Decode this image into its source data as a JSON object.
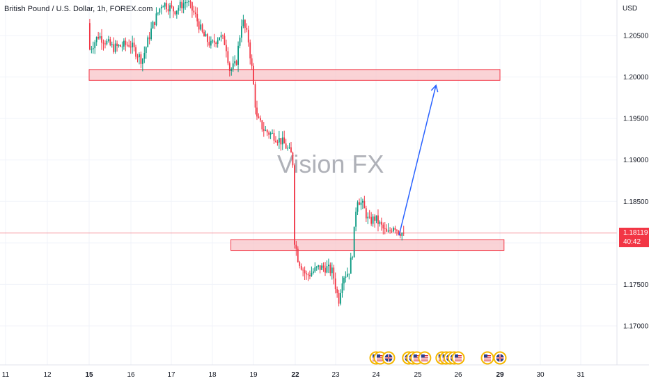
{
  "header": {
    "title": "British Pound / U.S. Dollar, 1h, FOREX.com",
    "currency": "USD"
  },
  "price_tag": {
    "price": "1.18119",
    "countdown": "40:42"
  },
  "watermark": "Vision FX",
  "colors": {
    "up": "#089981",
    "down": "#f23645",
    "zone_fill": "#f8c4c8",
    "zone_border": "#f23645",
    "arrow": "#2962ff",
    "grid": "#f0f3fa",
    "price_line": "#f23645"
  },
  "chart_data": {
    "type": "candlestick",
    "symbol": "British Pound / U.S. Dollar",
    "interval": "1h",
    "source": "FOREX.com",
    "y_ticks": [
      1.205,
      1.2,
      1.195,
      1.19,
      1.185,
      1.18,
      1.175,
      1.17
    ],
    "y_tick_labels": [
      "1.20500",
      "1.20000",
      "1.19500",
      "1.19000",
      "1.18500",
      "1.18000",
      "1.17500",
      "1.17000"
    ],
    "ylim": [
      1.167,
      1.2095
    ],
    "x_ticks": [
      {
        "label": "11",
        "day": 11,
        "bold": false
      },
      {
        "label": "12",
        "day": 12,
        "bold": false
      },
      {
        "label": "15",
        "day": 15,
        "bold": true
      },
      {
        "label": "16",
        "day": 16,
        "bold": false
      },
      {
        "label": "17",
        "day": 17,
        "bold": false
      },
      {
        "label": "18",
        "day": 18,
        "bold": false
      },
      {
        "label": "19",
        "day": 19,
        "bold": false
      },
      {
        "label": "22",
        "day": 22,
        "bold": true
      },
      {
        "label": "23",
        "day": 23,
        "bold": false
      },
      {
        "label": "24",
        "day": 24,
        "bold": false
      },
      {
        "label": "25",
        "day": 25,
        "bold": false
      },
      {
        "label": "26",
        "day": 26,
        "bold": false
      },
      {
        "label": "29",
        "day": 29,
        "bold": true
      },
      {
        "label": "30",
        "day": 30,
        "bold": false
      },
      {
        "label": "31",
        "day": 31,
        "bold": false
      }
    ],
    "current_price": 1.18119,
    "resistance_zone": {
      "low": 1.1996,
      "high": 1.2009,
      "from_day": 13.7,
      "to_day": 29.0
    },
    "support_zone": {
      "low": 1.1791,
      "high": 1.1804,
      "from_day": 18.45,
      "to_day": 29.1
    },
    "projection_arrow": {
      "from_day": 24.55,
      "from_price": 1.1809,
      "to_day": 25.45,
      "to_price": 1.199
    },
    "price_path": [
      {
        "day": 14.55,
        "price": 1.2065
      },
      {
        "day": 14.9,
        "price": 1.203
      },
      {
        "day": 15.25,
        "price": 1.205
      },
      {
        "day": 15.6,
        "price": 1.2035
      },
      {
        "day": 16.0,
        "price": 1.204
      },
      {
        "day": 16.3,
        "price": 1.202
      },
      {
        "day": 16.55,
        "price": 1.206
      },
      {
        "day": 16.8,
        "price": 1.209
      },
      {
        "day": 17.1,
        "price": 1.208
      },
      {
        "day": 17.4,
        "price": 1.2092
      },
      {
        "day": 17.6,
        "price": 1.2075
      },
      {
        "day": 17.8,
        "price": 1.205
      },
      {
        "day": 18.0,
        "price": 1.2038
      },
      {
        "day": 18.2,
        "price": 1.205
      },
      {
        "day": 18.35,
        "price": 1.204
      },
      {
        "day": 18.45,
        "price": 1.2008
      },
      {
        "day": 18.6,
        "price": 1.2015
      },
      {
        "day": 18.75,
        "price": 1.207
      },
      {
        "day": 18.9,
        "price": 1.2045
      },
      {
        "day": 19.0,
        "price": 1.2005
      },
      {
        "day": 19.1,
        "price": 1.195
      },
      {
        "day": 19.3,
        "price": 1.1935
      },
      {
        "day": 19.5,
        "price": 1.193
      },
      {
        "day": 19.75,
        "price": 1.192
      },
      {
        "day": 19.95,
        "price": 1.1905
      },
      {
        "day": 20.1,
        "price": 1.188
      },
      {
        "day": 20.2,
        "price": 1.184
      },
      {
        "day": 20.35,
        "price": 1.1815
      },
      {
        "day": 20.5,
        "price": 1.1805
      },
      {
        "day": 20.7,
        "price": 1.182
      },
      {
        "day": 20.9,
        "price": 1.1812
      },
      {
        "day": 21.1,
        "price": 1.1823
      },
      {
        "day": 21.3,
        "price": 1.181
      },
      {
        "day": 21.5,
        "price": 1.1806
      },
      {
        "day": 21.75,
        "price": 1.1795
      },
      {
        "day": 21.95,
        "price": 1.1805
      },
      {
        "day": 22.1,
        "price": 1.178
      },
      {
        "day": 22.3,
        "price": 1.176
      },
      {
        "day": 22.45,
        "price": 1.1765
      },
      {
        "day": 22.6,
        "price": 1.177
      },
      {
        "day": 22.8,
        "price": 1.177
      },
      {
        "day": 22.95,
        "price": 1.1765
      },
      {
        "day": 23.1,
        "price": 1.173
      },
      {
        "day": 23.2,
        "price": 1.176
      },
      {
        "day": 23.35,
        "price": 1.1765
      },
      {
        "day": 23.45,
        "price": 1.179
      },
      {
        "day": 23.55,
        "price": 1.1855
      },
      {
        "day": 23.7,
        "price": 1.1845
      },
      {
        "day": 23.85,
        "price": 1.1825
      },
      {
        "day": 24.0,
        "price": 1.183
      },
      {
        "day": 24.15,
        "price": 1.182
      },
      {
        "day": 24.3,
        "price": 1.181
      },
      {
        "day": 24.45,
        "price": 1.1822
      },
      {
        "day": 24.55,
        "price": 1.1815
      },
      {
        "day": 24.65,
        "price": 1.18119
      }
    ],
    "news_markers": [
      {
        "day": 24.0,
        "flag": "US"
      },
      {
        "day": 24.1,
        "flag": "US"
      },
      {
        "day": 24.3,
        "flag": "UK"
      },
      {
        "day": 24.78,
        "flag": "UK"
      },
      {
        "day": 24.88,
        "flag": "UK"
      },
      {
        "day": 24.98,
        "flag": "US"
      },
      {
        "day": 25.17,
        "flag": "US"
      },
      {
        "day": 25.6,
        "flag": "US"
      },
      {
        "day": 25.7,
        "flag": "US"
      },
      {
        "day": 25.8,
        "flag": "UK"
      },
      {
        "day": 25.9,
        "flag": "UK"
      },
      {
        "day": 26.0,
        "flag": "US"
      },
      {
        "day": 26.7,
        "flag": "US"
      },
      {
        "day": 27.3,
        "flag": "UK"
      }
    ]
  }
}
